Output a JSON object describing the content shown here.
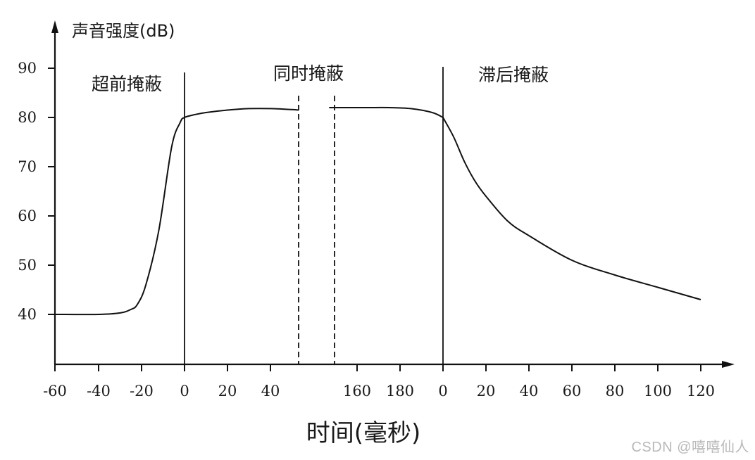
{
  "chart_data": {
    "type": "line",
    "ylabel": "声音强度(dB)",
    "xlabel": "时间(毫秒)",
    "ylim": [
      30,
      100
    ],
    "yticks": [
      "40",
      "50",
      "60",
      "70",
      "80",
      "90"
    ],
    "ytick_values": [
      40,
      50,
      60,
      70,
      80,
      90
    ],
    "xtick_labels": [
      "-60",
      "-40",
      "-20",
      "0",
      "20",
      "40",
      "160",
      "180",
      "0",
      "20",
      "40",
      "60",
      "80",
      "100",
      "120"
    ],
    "regions": [
      {
        "label": "超前掩蔽"
      },
      {
        "label": "同时掩蔽"
      },
      {
        "label": "滞后掩蔽"
      }
    ],
    "series": [
      {
        "segment": "pre-and-simultaneous",
        "x": [
          -60,
          -40,
          -30,
          -25,
          -22,
          -18,
          -12,
          -6,
          -2,
          0,
          5,
          10,
          20,
          30,
          40,
          50,
          53
        ],
        "y": [
          40,
          40,
          40.3,
          41,
          42,
          46,
          57,
          74,
          79,
          80,
          80.6,
          81,
          81.5,
          81.8,
          81.8,
          81.6,
          81.5
        ]
      },
      {
        "segment": "simultaneous-and-post",
        "x": [
          147,
          155,
          165,
          175,
          185,
          195,
          200
        ],
        "y": [
          82,
          82,
          82,
          82,
          81.8,
          81,
          80
        ]
      },
      {
        "segment": "post",
        "x": [
          0,
          5,
          10,
          15,
          20,
          30,
          40,
          60,
          80,
          100,
          120
        ],
        "y": [
          80,
          76,
          71,
          67,
          64,
          59,
          56,
          51,
          48,
          45.5,
          43
        ]
      }
    ],
    "grid": false
  },
  "watermark": "CSDN @嘻嘻仙人"
}
